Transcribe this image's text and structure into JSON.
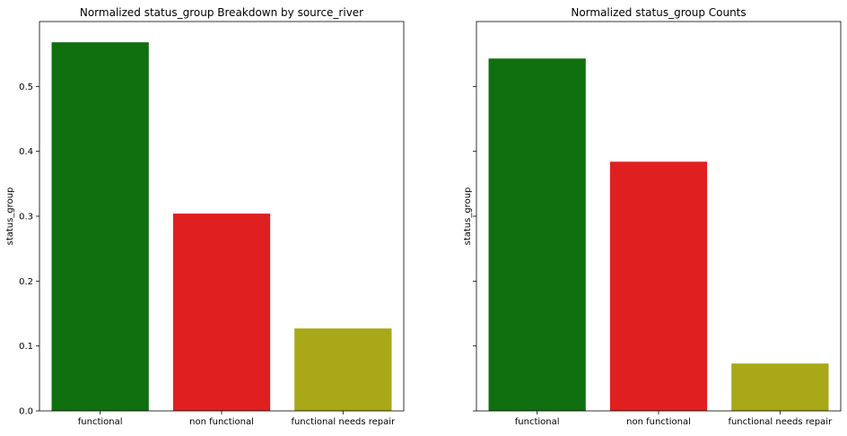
{
  "chart_data": [
    {
      "type": "bar",
      "title": "Normalized status_group Breakdown by source_river",
      "xlabel": "",
      "ylabel": "status_group",
      "categories": [
        "functional",
        "non functional",
        "functional needs repair"
      ],
      "values": [
        0.568,
        0.304,
        0.127
      ],
      "colors": [
        "#107010",
        "#e02020",
        "#a8a818"
      ],
      "ylim": [
        0,
        0.6
      ],
      "yticks": [
        0.0,
        0.1,
        0.2,
        0.3,
        0.4,
        0.5
      ],
      "ytick_labels": [
        "0.0",
        "0.1",
        "0.2",
        "0.3",
        "0.4",
        "0.5"
      ],
      "show_ytick_labels": true,
      "grid": false
    },
    {
      "type": "bar",
      "title": "Normalized status_group Counts",
      "xlabel": "",
      "ylabel": "status_group",
      "categories": [
        "functional",
        "non functional",
        "functional needs repair"
      ],
      "values": [
        0.543,
        0.384,
        0.073
      ],
      "colors": [
        "#107010",
        "#e02020",
        "#a8a818"
      ],
      "ylim": [
        0,
        0.6
      ],
      "yticks": [
        0.0,
        0.1,
        0.2,
        0.3,
        0.4,
        0.5
      ],
      "ytick_labels": [
        "0.0",
        "0.1",
        "0.2",
        "0.3",
        "0.4",
        "0.5"
      ],
      "show_ytick_labels": false,
      "grid": false
    }
  ]
}
